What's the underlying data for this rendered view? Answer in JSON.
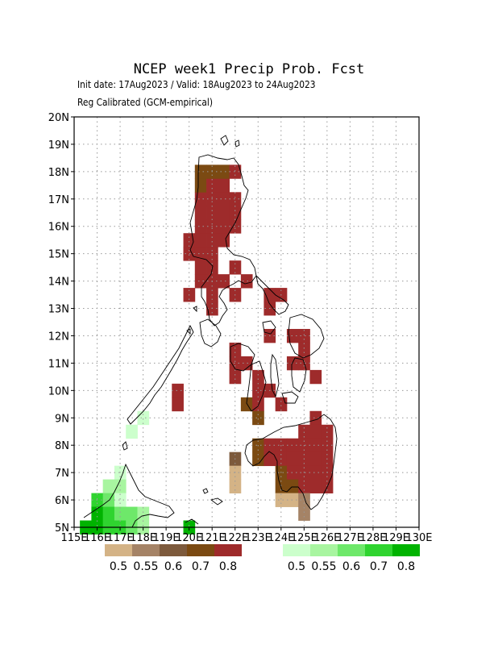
{
  "title": "NCEP week1 Precip Prob. Fcst",
  "subtitle_line1": "Init date: 17Aug2023 / Valid: 18Aug2023 to 24Aug2023",
  "subtitle_line2": "Reg Calibrated (GCM-empirical)",
  "map": {
    "lon_range": [
      115,
      130
    ],
    "lat_range": [
      5,
      20
    ],
    "x_tick_labels": [
      "115E",
      "116E",
      "117E",
      "118E",
      "119E",
      "120E",
      "121E",
      "122E",
      "123E",
      "124E",
      "125E",
      "126E",
      "127E",
      "128E",
      "129E",
      "130E"
    ],
    "y_tick_labels": [
      "5N",
      "6N",
      "7N",
      "8N",
      "9N",
      "10N",
      "11N",
      "12N",
      "13N",
      "14N",
      "15N",
      "16N",
      "17N",
      "18N",
      "19N",
      "20N"
    ],
    "grid": "dotted",
    "cell_size_deg": 0.5
  },
  "legend_below_normal": {
    "colors": [
      "#d4b386",
      "#a58366",
      "#7d5a3c",
      "#7b4a12",
      "#9e2b2b"
    ],
    "labels": [
      "0.5",
      "0.55",
      "0.6",
      "0.7",
      "0.8"
    ]
  },
  "legend_above_normal": {
    "colors": [
      "#ccffcc",
      "#a8f5a0",
      "#6ee86a",
      "#2fd42f",
      "#00b300"
    ],
    "labels": [
      "0.5",
      "0.55",
      "0.6",
      "0.7",
      "0.8"
    ]
  },
  "cells": [
    {
      "lon": 119.5,
      "lat": 10.0,
      "c": "#9e2b2b"
    },
    {
      "lon": 119.5,
      "lat": 9.5,
      "c": "#9e2b2b"
    },
    {
      "lon": 120.0,
      "lat": 13.5,
      "c": "#9e2b2b"
    },
    {
      "lon": 120.0,
      "lat": 15.0,
      "c": "#9e2b2b"
    },
    {
      "lon": 120.0,
      "lat": 15.5,
      "c": "#9e2b2b"
    },
    {
      "lon": 120.0,
      "lat": 15.0,
      "c": "#9e2b2b"
    },
    {
      "lon": 120.5,
      "lat": 15.0,
      "c": "#9e2b2b"
    },
    {
      "lon": 120.5,
      "lat": 15.5,
      "c": "#9e2b2b"
    },
    {
      "lon": 120.5,
      "lat": 16.0,
      "c": "#9e2b2b"
    },
    {
      "lon": 120.5,
      "lat": 16.5,
      "c": "#9e2b2b"
    },
    {
      "lon": 120.5,
      "lat": 17.0,
      "c": "#9e2b2b"
    },
    {
      "lon": 120.5,
      "lat": 17.5,
      "c": "#7b4a12"
    },
    {
      "lon": 120.5,
      "lat": 18.0,
      "c": "#7b4a12"
    },
    {
      "lon": 120.5,
      "lat": 14.0,
      "c": "#9e2b2b"
    },
    {
      "lon": 120.5,
      "lat": 14.5,
      "c": "#9e2b2b"
    },
    {
      "lon": 121.0,
      "lat": 14.0,
      "c": "#9e2b2b"
    },
    {
      "lon": 121.0,
      "lat": 14.5,
      "c": "#9e2b2b"
    },
    {
      "lon": 121.0,
      "lat": 15.0,
      "c": "#9e2b2b"
    },
    {
      "lon": 121.0,
      "lat": 15.5,
      "c": "#9e2b2b"
    },
    {
      "lon": 121.0,
      "lat": 16.0,
      "c": "#9e2b2b"
    },
    {
      "lon": 121.0,
      "lat": 16.5,
      "c": "#9e2b2b"
    },
    {
      "lon": 121.0,
      "lat": 17.0,
      "c": "#9e2b2b"
    },
    {
      "lon": 121.0,
      "lat": 17.5,
      "c": "#9e2b2b"
    },
    {
      "lon": 121.0,
      "lat": 18.0,
      "c": "#7b4a12"
    },
    {
      "lon": 121.5,
      "lat": 15.5,
      "c": "#9e2b2b"
    },
    {
      "lon": 121.5,
      "lat": 16.0,
      "c": "#9e2b2b"
    },
    {
      "lon": 121.5,
      "lat": 16.5,
      "c": "#9e2b2b"
    },
    {
      "lon": 121.5,
      "lat": 17.0,
      "c": "#9e2b2b"
    },
    {
      "lon": 121.5,
      "lat": 17.5,
      "c": "#9e2b2b"
    },
    {
      "lon": 121.5,
      "lat": 18.0,
      "c": "#7b4a12"
    },
    {
      "lon": 121.5,
      "lat": 14.0,
      "c": "#9e2b2b"
    },
    {
      "lon": 122.0,
      "lat": 16.0,
      "c": "#9e2b2b"
    },
    {
      "lon": 122.0,
      "lat": 16.5,
      "c": "#9e2b2b"
    },
    {
      "lon": 122.0,
      "lat": 17.0,
      "c": "#9e2b2b"
    },
    {
      "lon": 122.0,
      "lat": 18.0,
      "c": "#9e2b2b"
    },
    {
      "lon": 122.0,
      "lat": 14.5,
      "c": "#9e2b2b"
    },
    {
      "lon": 122.0,
      "lat": 13.5,
      "c": "#9e2b2b"
    },
    {
      "lon": 122.5,
      "lat": 14.0,
      "c": "#9e2b2b"
    },
    {
      "lon": 121.0,
      "lat": 13.0,
      "c": "#9e2b2b"
    },
    {
      "lon": 121.0,
      "lat": 13.5,
      "c": "#9e2b2b"
    },
    {
      "lon": 124.0,
      "lat": 13.5,
      "c": "#9e2b2b"
    },
    {
      "lon": 123.5,
      "lat": 13.5,
      "c": "#9e2b2b"
    },
    {
      "lon": 123.5,
      "lat": 13.0,
      "c": "#9e2b2b"
    },
    {
      "lon": 123.5,
      "lat": 12.0,
      "c": "#9e2b2b"
    },
    {
      "lon": 124.5,
      "lat": 12.0,
      "c": "#9e2b2b"
    },
    {
      "lon": 125.0,
      "lat": 12.0,
      "c": "#9e2b2b"
    },
    {
      "lon": 125.0,
      "lat": 11.5,
      "c": "#9e2b2b"
    },
    {
      "lon": 124.5,
      "lat": 11.0,
      "c": "#9e2b2b"
    },
    {
      "lon": 125.0,
      "lat": 11.0,
      "c": "#9e2b2b"
    },
    {
      "lon": 125.5,
      "lat": 10.5,
      "c": "#9e2b2b"
    },
    {
      "lon": 122.0,
      "lat": 11.5,
      "c": "#9e2b2b"
    },
    {
      "lon": 122.0,
      "lat": 11.0,
      "c": "#9e2b2b"
    },
    {
      "lon": 122.0,
      "lat": 10.5,
      "c": "#9e2b2b"
    },
    {
      "lon": 122.5,
      "lat": 11.0,
      "c": "#9e2b2b"
    },
    {
      "lon": 123.0,
      "lat": 10.5,
      "c": "#9e2b2b"
    },
    {
      "lon": 123.0,
      "lat": 10.0,
      "c": "#9e2b2b"
    },
    {
      "lon": 123.5,
      "lat": 10.0,
      "c": "#9e2b2b"
    },
    {
      "lon": 124.0,
      "lat": 9.5,
      "c": "#9e2b2b"
    },
    {
      "lon": 122.5,
      "lat": 9.5,
      "c": "#7b4a12"
    },
    {
      "lon": 123.0,
      "lat": 9.5,
      "c": "#9e2b2b"
    },
    {
      "lon": 123.0,
      "lat": 9.0,
      "c": "#7b4a12"
    },
    {
      "lon": 125.5,
      "lat": 9.0,
      "c": "#9e2b2b"
    },
    {
      "lon": 125.0,
      "lat": 8.5,
      "c": "#9e2b2b"
    },
    {
      "lon": 125.5,
      "lat": 8.5,
      "c": "#9e2b2b"
    },
    {
      "lon": 126.0,
      "lat": 8.5,
      "c": "#9e2b2b"
    },
    {
      "lon": 123.0,
      "lat": 8.0,
      "c": "#7b4a12"
    },
    {
      "lon": 123.5,
      "lat": 8.0,
      "c": "#9e2b2b"
    },
    {
      "lon": 124.0,
      "lat": 8.0,
      "c": "#9e2b2b"
    },
    {
      "lon": 124.5,
      "lat": 8.0,
      "c": "#9e2b2b"
    },
    {
      "lon": 125.0,
      "lat": 8.0,
      "c": "#9e2b2b"
    },
    {
      "lon": 125.5,
      "lat": 8.0,
      "c": "#9e2b2b"
    },
    {
      "lon": 126.0,
      "lat": 8.0,
      "c": "#9e2b2b"
    },
    {
      "lon": 123.0,
      "lat": 7.5,
      "c": "#7b4a12"
    },
    {
      "lon": 123.5,
      "lat": 7.5,
      "c": "#9e2b2b"
    },
    {
      "lon": 124.0,
      "lat": 7.5,
      "c": "#9e2b2b"
    },
    {
      "lon": 124.5,
      "lat": 7.5,
      "c": "#9e2b2b"
    },
    {
      "lon": 125.0,
      "lat": 7.5,
      "c": "#9e2b2b"
    },
    {
      "lon": 125.5,
      "lat": 7.5,
      "c": "#9e2b2b"
    },
    {
      "lon": 126.0,
      "lat": 7.5,
      "c": "#9e2b2b"
    },
    {
      "lon": 124.0,
      "lat": 7.0,
      "c": "#7b4a12"
    },
    {
      "lon": 124.5,
      "lat": 7.0,
      "c": "#9e2b2b"
    },
    {
      "lon": 125.0,
      "lat": 7.0,
      "c": "#9e2b2b"
    },
    {
      "lon": 125.5,
      "lat": 7.0,
      "c": "#9e2b2b"
    },
    {
      "lon": 126.0,
      "lat": 7.0,
      "c": "#9e2b2b"
    },
    {
      "lon": 124.0,
      "lat": 6.5,
      "c": "#7b4a12"
    },
    {
      "lon": 124.5,
      "lat": 6.5,
      "c": "#7b4a12"
    },
    {
      "lon": 125.0,
      "lat": 6.5,
      "c": "#9e2b2b"
    },
    {
      "lon": 125.5,
      "lat": 6.5,
      "c": "#9e2b2b"
    },
    {
      "lon": 126.0,
      "lat": 6.5,
      "c": "#9e2b2b"
    },
    {
      "lon": 124.0,
      "lat": 6.0,
      "c": "#d4b386"
    },
    {
      "lon": 124.5,
      "lat": 6.0,
      "c": "#d4b386"
    },
    {
      "lon": 125.0,
      "lat": 6.0,
      "c": "#a58366"
    },
    {
      "lon": 125.0,
      "lat": 5.5,
      "c": "#a58366"
    },
    {
      "lon": 122.0,
      "lat": 7.5,
      "c": "#7d5a3c"
    },
    {
      "lon": 122.0,
      "lat": 7.0,
      "c": "#d4b386"
    },
    {
      "lon": 122.0,
      "lat": 6.5,
      "c": "#d4b386"
    },
    {
      "lon": 118.0,
      "lat": 9.0,
      "c": "#ccffcc"
    },
    {
      "lon": 117.5,
      "lat": 8.5,
      "c": "#ccffcc"
    },
    {
      "lon": 117.0,
      "lat": 7.0,
      "c": "#ccffcc"
    },
    {
      "lon": 117.0,
      "lat": 6.5,
      "c": "#a8f5a0"
    },
    {
      "lon": 116.5,
      "lat": 6.5,
      "c": "#a8f5a0"
    },
    {
      "lon": 116.0,
      "lat": 6.0,
      "c": "#2fd42f"
    },
    {
      "lon": 116.5,
      "lat": 6.0,
      "c": "#6ee86a"
    },
    {
      "lon": 117.0,
      "lat": 6.0,
      "c": "#ccffcc"
    },
    {
      "lon": 116.0,
      "lat": 5.5,
      "c": "#00b300"
    },
    {
      "lon": 116.5,
      "lat": 5.5,
      "c": "#2fd42f"
    },
    {
      "lon": 117.0,
      "lat": 5.5,
      "c": "#6ee86a"
    },
    {
      "lon": 117.5,
      "lat": 5.5,
      "c": "#6ee86a"
    },
    {
      "lon": 118.0,
      "lat": 5.5,
      "c": "#a8f5a0"
    },
    {
      "lon": 115.5,
      "lat": 5.0,
      "c": "#00b300"
    },
    {
      "lon": 116.0,
      "lat": 5.0,
      "c": "#00b300"
    },
    {
      "lon": 116.5,
      "lat": 5.0,
      "c": "#2fd42f"
    },
    {
      "lon": 117.0,
      "lat": 5.0,
      "c": "#2fd42f"
    },
    {
      "lon": 117.5,
      "lat": 5.0,
      "c": "#6ee86a"
    },
    {
      "lon": 118.0,
      "lat": 5.0,
      "c": "#a8f5a0"
    },
    {
      "lon": 120.0,
      "lat": 5.0,
      "c": "#00b300"
    }
  ]
}
